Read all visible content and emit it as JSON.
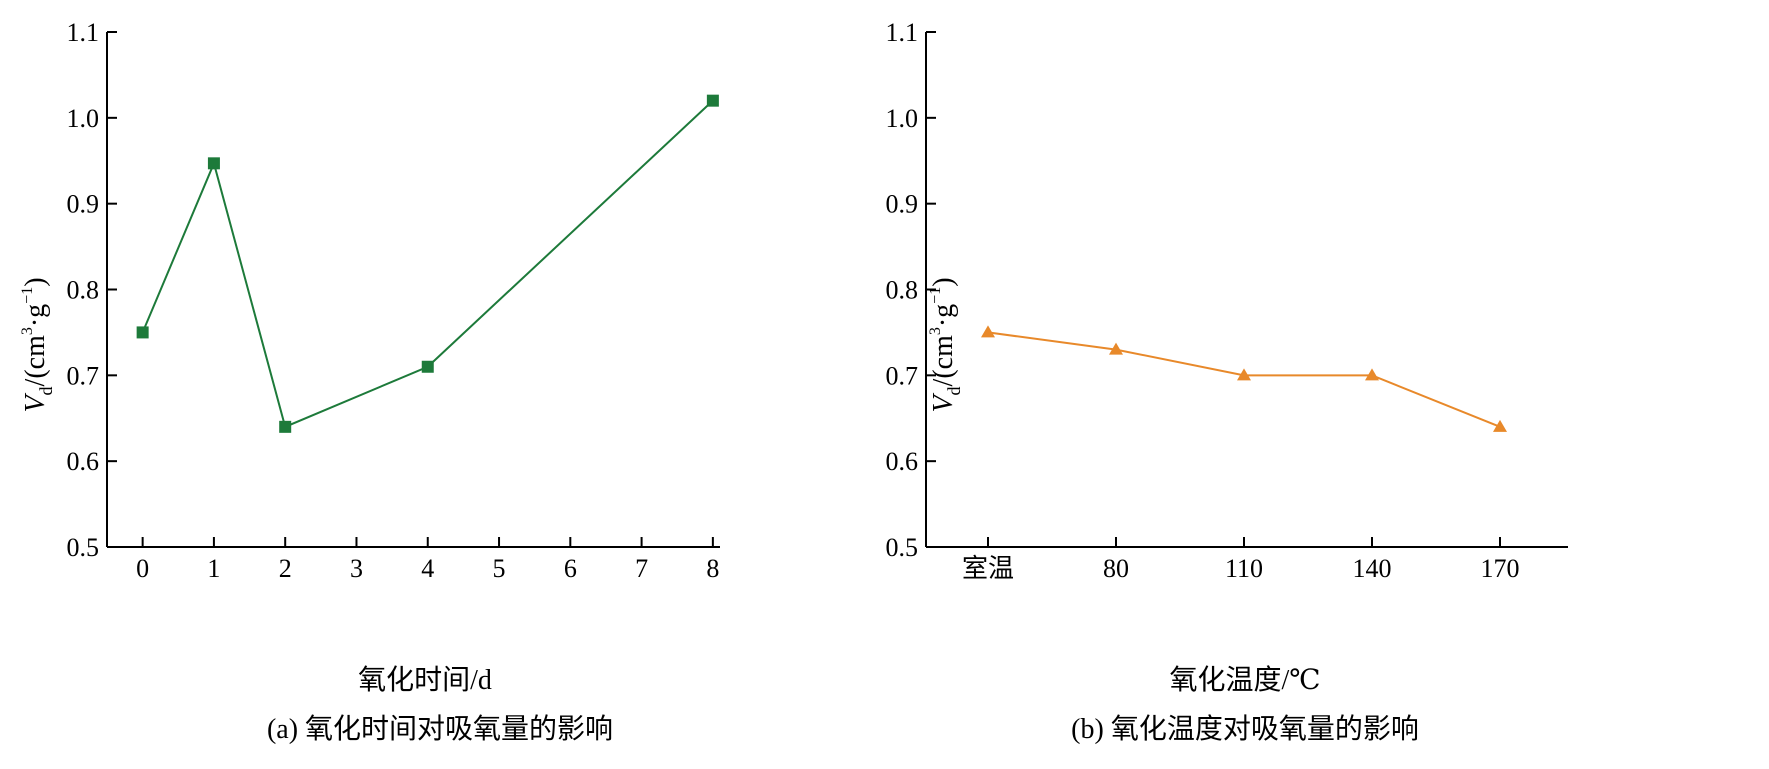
{
  "chart_data": [
    {
      "type": "line",
      "caption": "(a) 氧化时间对吸氧量的影响",
      "xlabel": "氧化时间/d",
      "ylabel": "V_d/(cm³·g⁻¹)",
      "ylabel_parts": {
        "var": "V",
        "sub": "d",
        "rest1": "/(cm",
        "sup1": "3",
        "rest2": "·g",
        "sup2": "−1",
        "rest3": ")"
      },
      "ylim": [
        0.5,
        1.1
      ],
      "yticks": [
        "0.5",
        "0.6",
        "0.7",
        "0.8",
        "0.9",
        "1.0",
        "1.1"
      ],
      "ytick_values": [
        0.5,
        0.6,
        0.7,
        0.8,
        0.9,
        1.0,
        1.1
      ],
      "xticks": [
        "0",
        "1",
        "2",
        "3",
        "4",
        "5",
        "6",
        "7",
        "8"
      ],
      "xtick_values": [
        0,
        1,
        2,
        3,
        4,
        5,
        6,
        7,
        8
      ],
      "xlim": [
        -0.5,
        8.1
      ],
      "series": [
        {
          "x": [
            0,
            1,
            2,
            4,
            8
          ],
          "values": [
            0.75,
            0.947,
            0.64,
            0.71,
            1.02
          ],
          "color": "#1d7a3a",
          "marker": "square"
        }
      ]
    },
    {
      "type": "line",
      "caption": "(b) 氧化温度对吸氧量的影响",
      "xlabel": "氧化温度/℃",
      "ylabel": "V_d/(cm³·g⁻¹)",
      "ylabel_parts": {
        "var": "V",
        "sub": "d",
        "rest1": "/(cm",
        "sup1": "3",
        "rest2": "·g",
        "sup2": "−1",
        "rest3": ")"
      },
      "ylim": [
        0.5,
        1.1
      ],
      "yticks": [
        "0.5",
        "0.6",
        "0.7",
        "0.8",
        "0.9",
        "1.0",
        "1.1"
      ],
      "ytick_values": [
        0.5,
        0.6,
        0.7,
        0.8,
        0.9,
        1.0,
        1.1
      ],
      "categories": [
        "室温",
        "80",
        "110",
        "140",
        "170"
      ],
      "series": [
        {
          "values": [
            0.75,
            0.73,
            0.7,
            0.7,
            0.64
          ],
          "color": "#e8892a",
          "marker": "triangle"
        }
      ]
    }
  ]
}
